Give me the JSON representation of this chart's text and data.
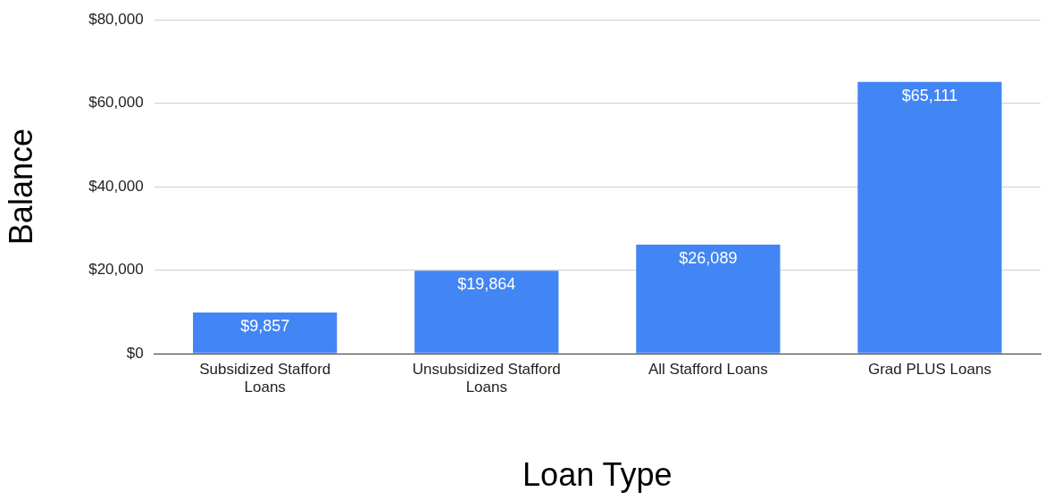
{
  "chart_data": {
    "type": "bar",
    "xlabel": "Loan Type",
    "ylabel": "Balance",
    "categories": [
      "Subsidized Stafford Loans",
      "Unsubsidized Stafford Loans",
      "All Stafford Loans",
      "Grad PLUS Loans"
    ],
    "values": [
      9857,
      19864,
      26089,
      65111
    ],
    "value_labels": [
      "$9,857",
      "$19,864",
      "$26,089",
      "$65,111"
    ],
    "color": "#4285f4",
    "ylim": [
      0,
      80000
    ],
    "yticks": [
      {
        "value": 0,
        "label": "$0"
      },
      {
        "value": 20000,
        "label": "$20,000"
      },
      {
        "value": 40000,
        "label": "$40,000"
      },
      {
        "value": 60000,
        "label": "$60,000"
      },
      {
        "value": 80000,
        "label": "$80,000"
      }
    ],
    "grid": "y",
    "legend": false
  }
}
